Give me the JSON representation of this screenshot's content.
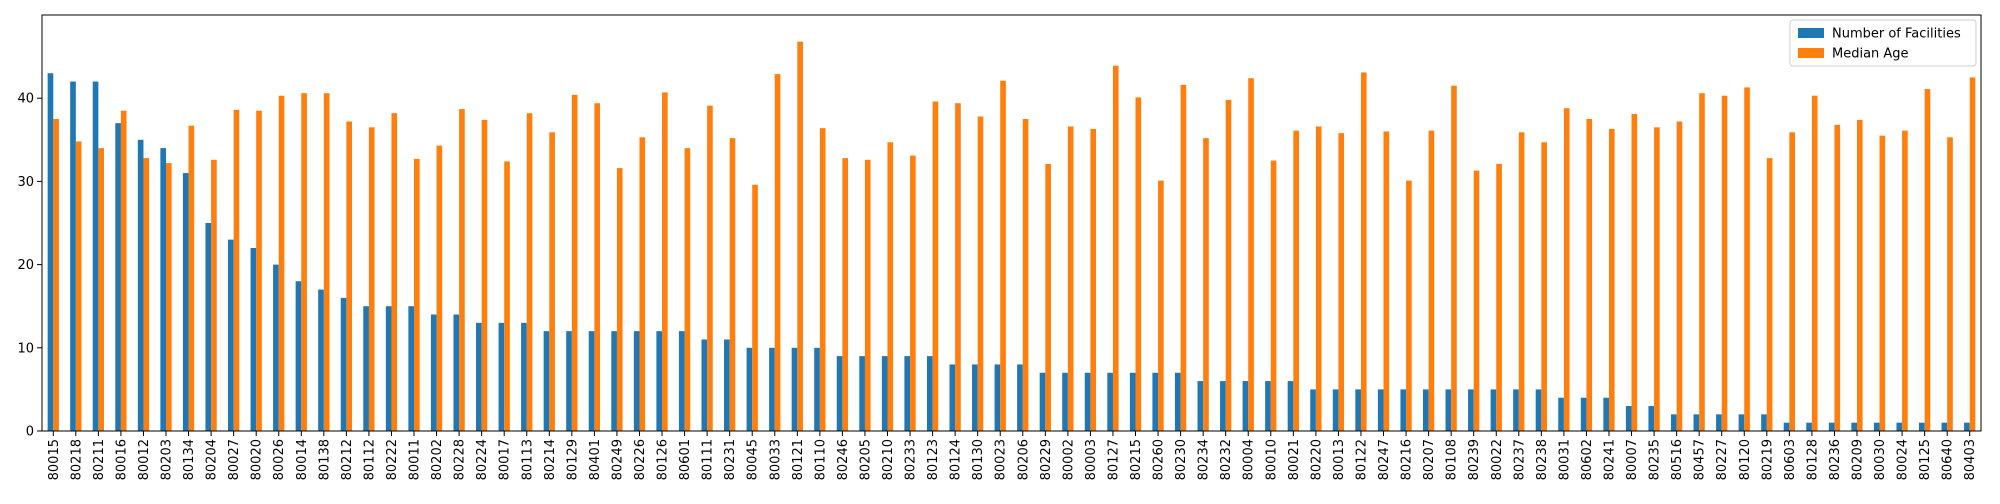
{
  "chart_data": {
    "type": "bar",
    "title": "",
    "xlabel": "",
    "ylabel": "",
    "ylim": [
      0,
      50
    ],
    "yticks": [
      0,
      10,
      20,
      30,
      40
    ],
    "grid": false,
    "legend_position": "top-right",
    "categories": [
      "80015",
      "80218",
      "80211",
      "80016",
      "80012",
      "80203",
      "80134",
      "80204",
      "80027",
      "80020",
      "80026",
      "80014",
      "80138",
      "80212",
      "80112",
      "80222",
      "80011",
      "80202",
      "80228",
      "80224",
      "80017",
      "80113",
      "80214",
      "80129",
      "80401",
      "80249",
      "80226",
      "80126",
      "80601",
      "80111",
      "80231",
      "80045",
      "80033",
      "80121",
      "80110",
      "80246",
      "80205",
      "80210",
      "80233",
      "80123",
      "80124",
      "80130",
      "80023",
      "80206",
      "80229",
      "80002",
      "80003",
      "80127",
      "80215",
      "80260",
      "80230",
      "80234",
      "80232",
      "80004",
      "80010",
      "80021",
      "80220",
      "80013",
      "80122",
      "80247",
      "80216",
      "80207",
      "80108",
      "80239",
      "80022",
      "80237",
      "80238",
      "80031",
      "80602",
      "80241",
      "80007",
      "80235",
      "80516",
      "80457",
      "80227",
      "80120",
      "80219",
      "80603",
      "80128",
      "80236",
      "80209",
      "80030",
      "80024",
      "80125",
      "80640",
      "80403"
    ],
    "series": [
      {
        "name": "Number of Facilities",
        "color": "#1f77b4",
        "values": [
          43,
          42,
          42,
          37,
          35,
          34,
          31,
          25,
          23,
          22,
          20,
          18,
          17,
          16,
          15,
          15,
          15,
          14,
          14,
          13,
          13,
          13,
          12,
          12,
          12,
          12,
          12,
          12,
          12,
          11,
          11,
          10,
          10,
          10,
          10,
          9,
          9,
          9,
          9,
          9,
          8,
          8,
          8,
          8,
          7,
          7,
          7,
          7,
          7,
          7,
          7,
          6,
          6,
          6,
          6,
          6,
          5,
          5,
          5,
          5,
          5,
          5,
          5,
          5,
          5,
          5,
          5,
          4,
          4,
          4,
          3,
          3,
          2,
          2,
          2,
          2,
          2,
          1,
          1,
          1,
          1,
          1,
          1,
          1,
          1,
          1
        ]
      },
      {
        "name": "Median Age",
        "color": "#ff7f0e",
        "values": [
          37.5,
          34.8,
          34.0,
          38.5,
          32.8,
          32.2,
          36.7,
          32.6,
          38.6,
          38.5,
          40.3,
          40.6,
          40.6,
          37.2,
          36.5,
          38.2,
          32.7,
          34.3,
          38.7,
          37.4,
          32.4,
          38.2,
          35.9,
          40.4,
          39.4,
          31.6,
          35.3,
          40.7,
          34.0,
          39.1,
          35.2,
          29.6,
          42.9,
          46.8,
          36.4,
          32.8,
          32.6,
          34.7,
          33.1,
          39.6,
          39.4,
          37.8,
          42.1,
          37.5,
          32.1,
          36.6,
          36.3,
          43.9,
          40.1,
          30.1,
          41.6,
          35.2,
          39.8,
          42.4,
          32.5,
          36.1,
          36.6,
          35.8,
          43.1,
          36.0,
          30.1,
          36.1,
          41.5,
          31.3,
          32.1,
          35.9,
          34.7,
          38.8,
          37.5,
          36.3,
          38.1,
          36.5,
          37.2,
          40.6,
          40.3,
          41.3,
          32.8,
          35.9,
          40.3,
          36.8,
          37.4,
          35.5,
          36.1,
          41.1,
          35.3,
          42.5
        ]
      }
    ]
  }
}
